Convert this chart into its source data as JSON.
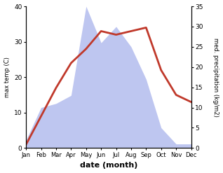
{
  "months": [
    "Jan",
    "Feb",
    "Mar",
    "Apr",
    "May",
    "Jun",
    "Jul",
    "Aug",
    "Sep",
    "Oct",
    "Nov",
    "Dec"
  ],
  "temperature": [
    1,
    9,
    17,
    24,
    28,
    33,
    32,
    33,
    34,
    22,
    15,
    13
  ],
  "precipitation": [
    2,
    10,
    11,
    13,
    35,
    26,
    30,
    25,
    17,
    5,
    1,
    1
  ],
  "temp_color": "#c0392b",
  "precip_color_fill": "#b3bcee",
  "temp_ylim": [
    0,
    40
  ],
  "precip_ylim": [
    0,
    35
  ],
  "temp_yticks": [
    0,
    10,
    20,
    30,
    40
  ],
  "precip_yticks": [
    0,
    5,
    10,
    15,
    20,
    25,
    30,
    35
  ],
  "xlabel": "date (month)",
  "ylabel_left": "max temp (C)",
  "ylabel_right": "med. precipitation (kg/m2)",
  "bg_color": "#ffffff",
  "label_fontsize": 7
}
